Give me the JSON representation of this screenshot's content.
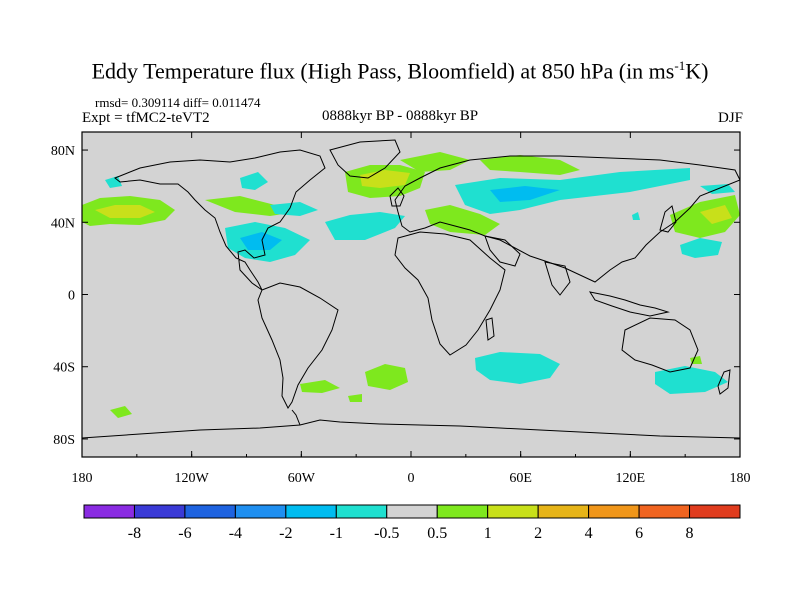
{
  "title_main": "Eddy Temperature flux (High Pass, Bloomfield) at 850 hPa (in ms",
  "title_sup": "-1",
  "title_end": "K)",
  "stats": "rmsd= 0.309114 diff= 0.011474",
  "experiment": "Expt = tfMC2-teVT2",
  "period": "0888kyr BP - 0888kyr BP",
  "season": "DJF",
  "map": {
    "ocean_color": "#d3d3d3",
    "lon_ticks": [
      "180",
      "120W",
      "60W",
      "0",
      "60E",
      "120E",
      "180"
    ],
    "lat_ticks": [
      "80N",
      "40N",
      "0",
      "40S",
      "80S"
    ]
  },
  "colorbar": {
    "colors": [
      "#8a2be2",
      "#3a3ad6",
      "#1e63e0",
      "#1f8ff0",
      "#00bcf0",
      "#1fe0d0",
      "#d3d3d3",
      "#7ee81e",
      "#c8e01a",
      "#e6b418",
      "#f0961a",
      "#f06420",
      "#e03c1e"
    ],
    "labels": [
      "-8",
      "-6",
      "-4",
      "-2",
      "-1",
      "-0.5",
      "0.5",
      "1",
      "2",
      "4",
      "6",
      "8"
    ]
  },
  "field_colors": {
    "pos1": "#7ee81e",
    "pos2": "#c8e01a",
    "neg1": "#1fe0d0",
    "neg2": "#00bcf0"
  }
}
